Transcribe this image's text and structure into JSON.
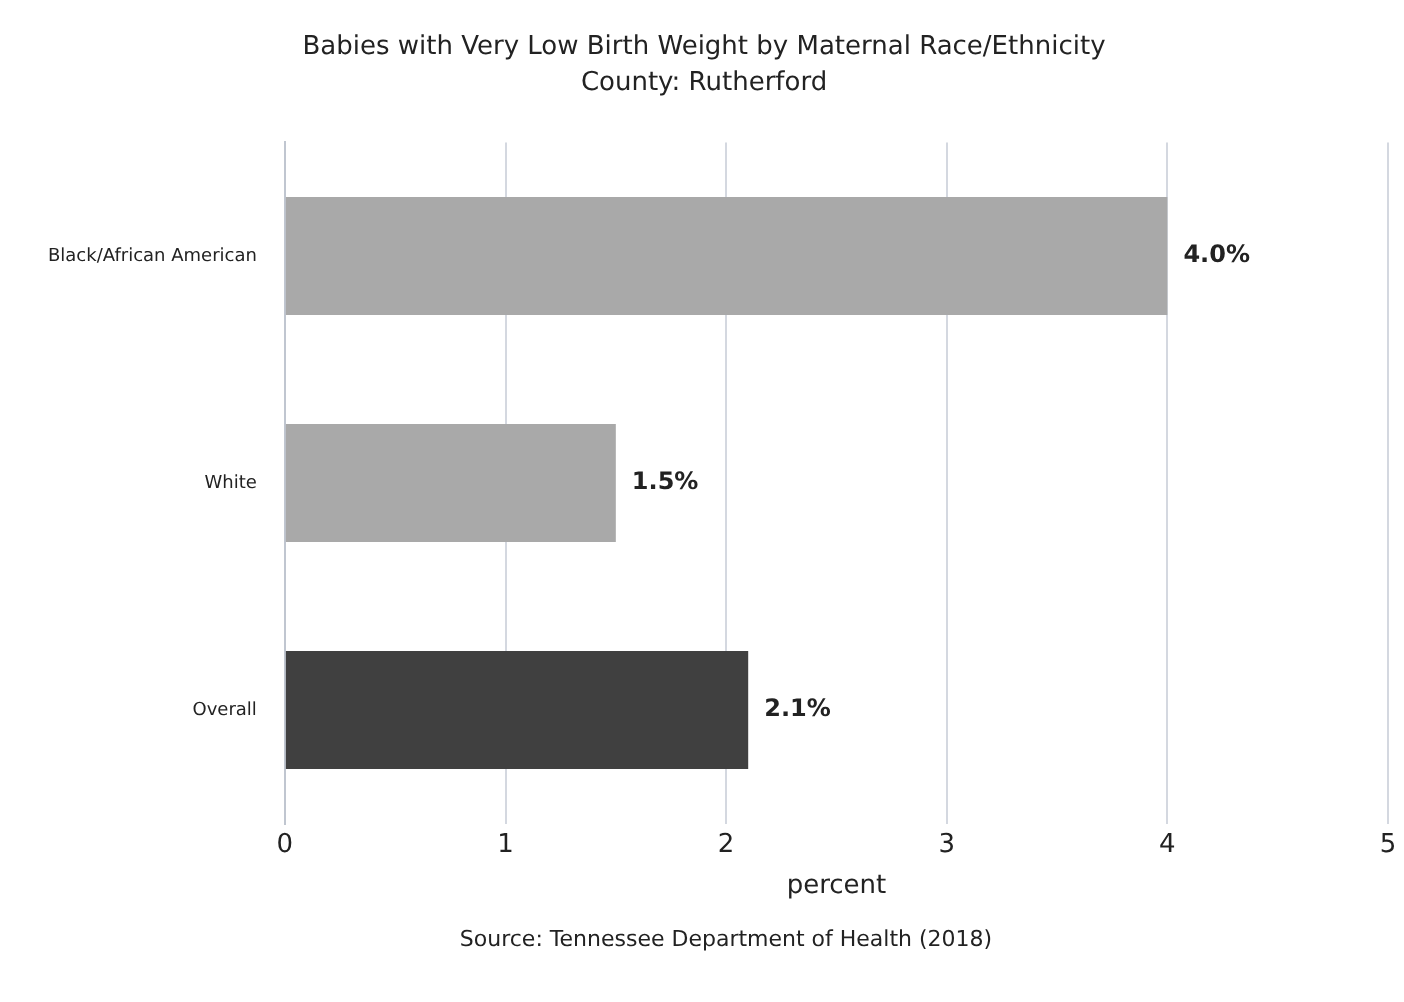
{
  "chart_data": {
    "type": "bar",
    "orientation": "horizontal",
    "title": "Babies with Very Low Birth Weight by Maternal Race/Ethnicity",
    "subtitle": "County: Rutherford",
    "xlabel": "percent",
    "categories": [
      "Black/African American",
      "White",
      "Overall"
    ],
    "values": [
      4.0,
      1.5,
      2.1
    ],
    "colors": [
      "#a9a9a9",
      "#a9a9a9",
      "#404040"
    ],
    "value_labels": [
      "4.0%",
      "1.5%",
      "2.1%"
    ],
    "xlim": [
      0,
      5
    ],
    "xticks": [
      0,
      1,
      2,
      3,
      4,
      5
    ],
    "grid": "x",
    "legend": false,
    "annotations": [
      "Source: Tennessee Department of Health (2018)"
    ]
  }
}
